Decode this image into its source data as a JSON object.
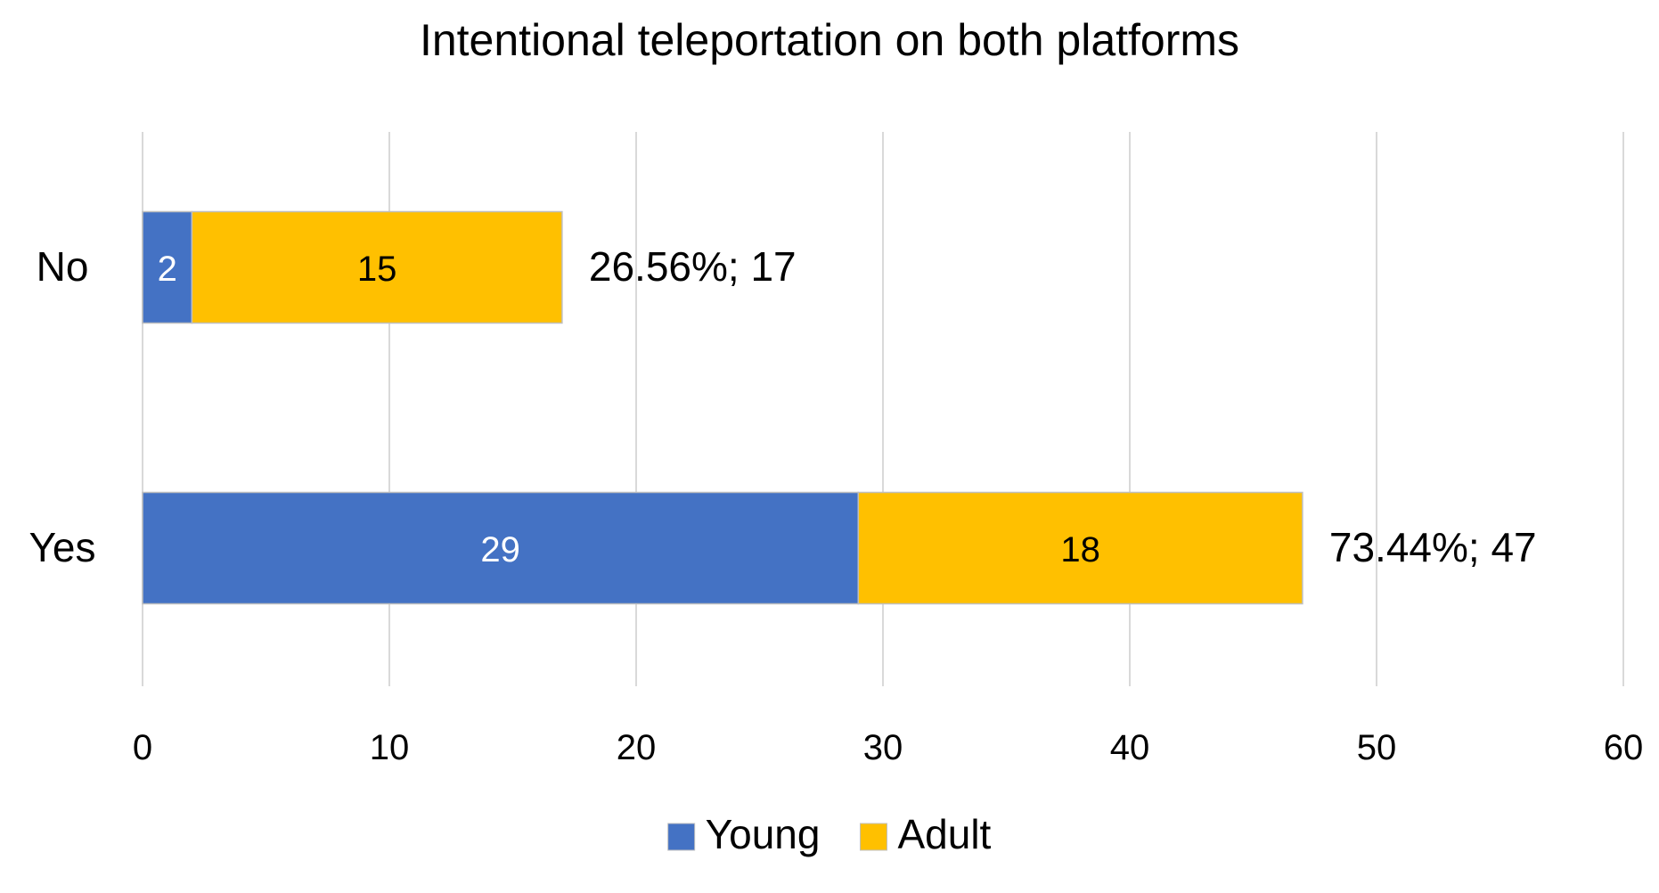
{
  "chart_data": {
    "type": "bar",
    "orientation": "horizontal",
    "stacked": true,
    "title": "Intentional teleportation on both platforms",
    "categories": [
      "No",
      "Yes"
    ],
    "series": [
      {
        "name": "Young",
        "values": [
          2,
          29
        ],
        "color": "#4472C4",
        "label_color": "#ffffff"
      },
      {
        "name": "Adult",
        "values": [
          15,
          18
        ],
        "color": "#FFC000",
        "label_color": "#000000"
      }
    ],
    "totals": [
      17,
      47
    ],
    "total_labels": [
      "26.56%; 17",
      "73.44%; 47"
    ],
    "xlim": [
      0,
      60
    ],
    "xticks": [
      0,
      10,
      20,
      30,
      40,
      50,
      60
    ],
    "xticklabels": [
      "0",
      "10",
      "20",
      "30",
      "40",
      "50",
      "60"
    ],
    "grid": "vertical",
    "legend": "bottom",
    "xlabel": "",
    "ylabel": ""
  }
}
